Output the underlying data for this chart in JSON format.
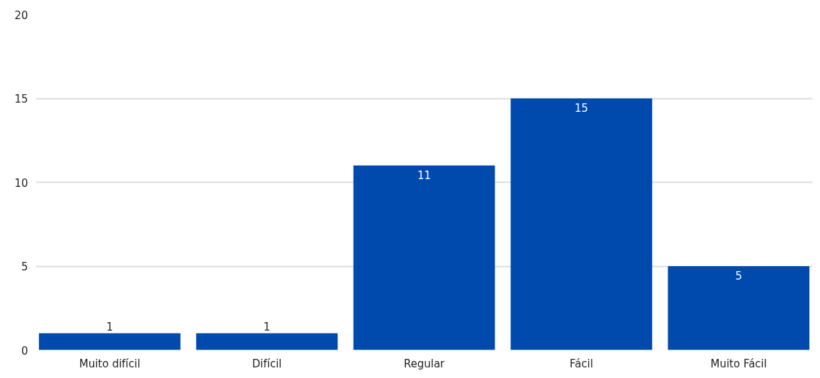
{
  "chart_data": {
    "type": "bar",
    "categories": [
      "Muito difícil",
      "Difícil",
      "Regular",
      "Fácil",
      "Muito Fácil"
    ],
    "values": [
      1,
      1,
      11,
      15,
      5
    ],
    "color": "#004aad",
    "ylim": [
      0,
      20
    ],
    "yticks": [
      0,
      5,
      10,
      15,
      20
    ],
    "grid": "y",
    "data_labels": true
  }
}
